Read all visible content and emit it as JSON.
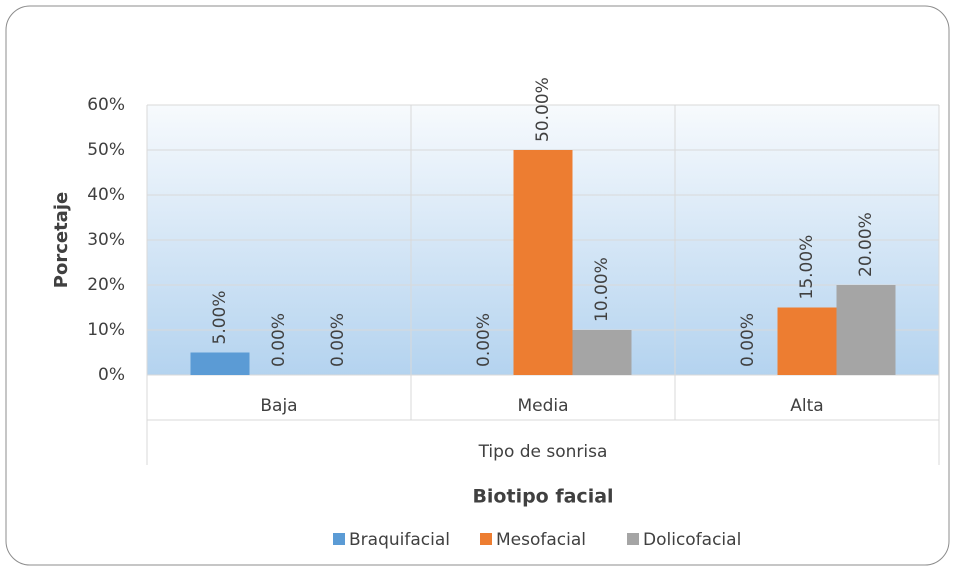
{
  "chart_data": {
    "type": "bar",
    "categories": [
      "Baja",
      "Media",
      "Alta"
    ],
    "x_label": "Tipo de sonrisa",
    "y_label": "Porcetaje",
    "legend_title": "Biotipo facial",
    "series": [
      {
        "name": "Braquifacial",
        "color": "#5b9bd5",
        "values": [
          5,
          0,
          0
        ],
        "value_labels": [
          "5.00%",
          "0.00%",
          "0.00%"
        ]
      },
      {
        "name": "Mesofacial",
        "color": "#ed7d31",
        "values": [
          0,
          50,
          15
        ],
        "value_labels": [
          "0.00%",
          "50.00%",
          "15.00%"
        ]
      },
      {
        "name": "Dolicofacial",
        "color": "#a5a5a5",
        "values": [
          0,
          10,
          20
        ],
        "value_labels": [
          "0.00%",
          "10.00%",
          "20.00%"
        ]
      }
    ],
    "ylim": [
      0,
      60
    ],
    "yticks": [
      {
        "value": 0,
        "label": "0%"
      },
      {
        "value": 10,
        "label": "10%"
      },
      {
        "value": 20,
        "label": "20%"
      },
      {
        "value": 30,
        "label": "30%"
      },
      {
        "value": 40,
        "label": "40%"
      },
      {
        "value": 50,
        "label": "50%"
      },
      {
        "value": 60,
        "label": "60%"
      }
    ],
    "grid": true,
    "legend": "bottom"
  }
}
